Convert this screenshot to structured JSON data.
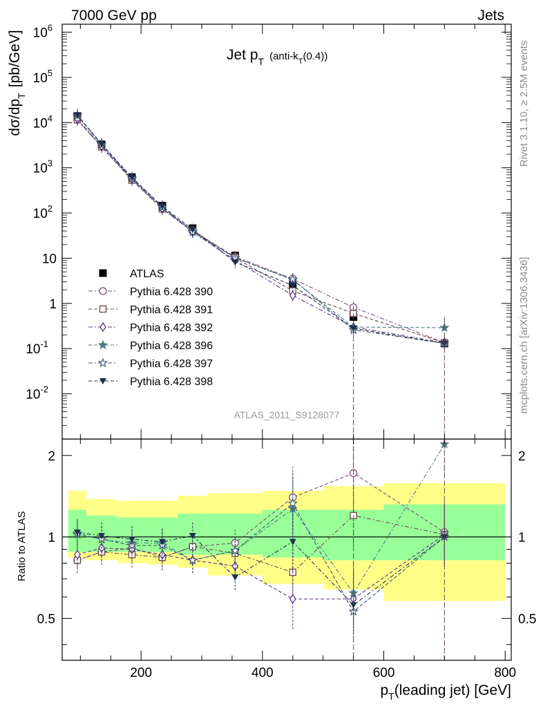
{
  "header": {
    "left": "7000 GeV pp",
    "right": "Jets"
  },
  "side_labels": {
    "rivet": "Rivet 3.1.10, ≥ 2.5M events",
    "mcplots": "mcplots.cern.ch [arXiv:1306.3436]"
  },
  "chart_data": [
    {
      "type": "scatter",
      "panel": "main",
      "title_main": "Jet p",
      "title_sub": "T",
      "title_extra": "(anti-k",
      "title_extra_sub": "T",
      "title_extra_end": "(0.4))",
      "ylabel_main": "dσ/dp",
      "ylabel_sub": "T",
      "ylabel_end": "[pb/GeV]",
      "analysis_label": "ATLAS_2011_S9128077",
      "y_scale": "log",
      "ylim": [
        0.001,
        1500000
      ],
      "xlim": [
        70,
        810
      ],
      "y_tick_labels": [
        "10^6",
        "10^5",
        "10^4",
        "10^3",
        "10^2",
        "10",
        "1",
        "10^-1",
        "10^-2"
      ],
      "x": [
        95,
        135,
        185,
        235,
        285,
        355,
        450,
        550,
        700
      ],
      "series": [
        {
          "name": "ATLAS",
          "marker": "square-filled",
          "color": "#000000",
          "values": [
            14000,
            3300,
            620,
            145,
            46,
            11.5,
            2.6,
            0.5,
            0.13
          ]
        },
        {
          "name": "Pythia 6.428 390",
          "marker": "circle-open",
          "color": "#7a4a78",
          "values": [
            11500,
            2900,
            560,
            122,
            40,
            10.8,
            3.5,
            0.82,
            0.135
          ]
        },
        {
          "name": "Pythia 6.428 391",
          "marker": "square-open",
          "color": "#6a4848",
          "values": [
            11500,
            2900,
            530,
            123,
            42,
            10.2,
            1.9,
            0.6,
            0.135
          ]
        },
        {
          "name": "Pythia 6.428 392",
          "marker": "diamond-open",
          "color": "#553080",
          "values": [
            12000,
            3000,
            560,
            125,
            38,
            9.0,
            1.5,
            0.3,
            0.135
          ]
        },
        {
          "name": "Pythia 6.428 396",
          "marker": "star-filled",
          "color": "#4a7a80",
          "values": [
            14200,
            3250,
            590,
            138,
            38,
            10.2,
            3.3,
            0.3,
            0.29
          ]
        },
        {
          "name": "Pythia 6.428 397",
          "marker": "star-open",
          "color": "#3a5070",
          "values": [
            14400,
            3250,
            580,
            135,
            38,
            10.3,
            3.4,
            0.26,
            0.13
          ]
        },
        {
          "name": "Pythia 6.428 398",
          "marker": "triangle-down-filled",
          "color": "#1e2e4e",
          "values": [
            14600,
            3350,
            610,
            140,
            43,
            8.2,
            2.5,
            0.28,
            0.13
          ]
        }
      ]
    },
    {
      "type": "scatter",
      "panel": "ratio",
      "ylabel": "Ratio to ATLAS",
      "xlabel_main": "p",
      "xlabel_sub": "T",
      "xlabel_end": "(leading jet) [GeV]",
      "ylim": [
        0.35,
        2.3
      ],
      "xlim": [
        70,
        810
      ],
      "x_ticks": [
        200,
        400,
        600,
        800
      ],
      "y_ticks": [
        0.5,
        1,
        2
      ],
      "bin_edges": [
        80,
        110,
        160,
        210,
        260,
        310,
        400,
        500,
        600,
        800
      ],
      "band_inner": [
        [
          0.88,
          1.26
        ],
        [
          0.88,
          1.2
        ],
        [
          0.88,
          1.18
        ],
        [
          0.88,
          1.18
        ],
        [
          0.86,
          1.22
        ],
        [
          0.86,
          1.22
        ],
        [
          0.84,
          1.26
        ],
        [
          0.82,
          1.26
        ],
        [
          0.82,
          1.32
        ]
      ],
      "band_outer": [
        [
          0.84,
          1.48
        ],
        [
          0.82,
          1.38
        ],
        [
          0.8,
          1.36
        ],
        [
          0.79,
          1.36
        ],
        [
          0.77,
          1.42
        ],
        [
          0.72,
          1.45
        ],
        [
          0.67,
          1.48
        ],
        [
          0.64,
          1.54
        ],
        [
          0.58,
          1.58
        ]
      ],
      "x": [
        95,
        135,
        185,
        235,
        285,
        355,
        450,
        550,
        700
      ],
      "series": [
        {
          "name": "Pythia 6.428 390",
          "values": [
            0.82,
            0.88,
            0.91,
            0.84,
            0.92,
            0.95,
            1.4,
            1.72,
            1.04
          ]
        },
        {
          "name": "Pythia 6.428 391",
          "values": [
            0.82,
            0.88,
            0.86,
            0.84,
            0.92,
            0.87,
            0.74,
            1.2,
            1.02
          ]
        },
        {
          "name": "Pythia 6.428 392",
          "values": [
            0.86,
            0.91,
            0.9,
            0.86,
            0.82,
            0.78,
            0.59,
            0.59,
            1.02
          ]
        },
        {
          "name": "Pythia 6.428 396",
          "values": [
            1.02,
            0.98,
            0.95,
            0.95,
            0.82,
            0.89,
            1.27,
            0.62,
            2.2
          ]
        },
        {
          "name": "Pythia 6.428 397",
          "values": [
            1.03,
            0.98,
            0.93,
            0.93,
            0.82,
            0.89,
            1.33,
            0.53,
            1.0
          ]
        },
        {
          "name": "Pythia 6.428 398",
          "values": [
            1.04,
            1.01,
            0.98,
            0.96,
            1.01,
            0.71,
            0.96,
            0.56,
            1.0
          ]
        }
      ]
    }
  ]
}
